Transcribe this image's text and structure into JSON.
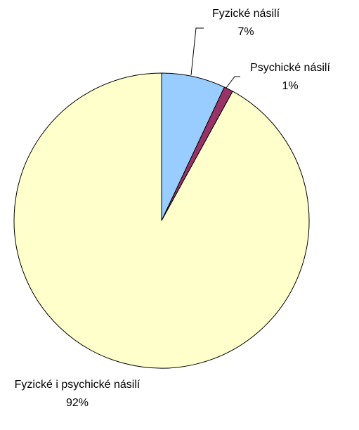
{
  "chart_data": {
    "type": "pie",
    "categories": [
      "Fyzické násilí",
      "Psychické násilí",
      "Fyzické i psychické násilí"
    ],
    "values": [
      7,
      1,
      92
    ],
    "value_labels": [
      "7%",
      "1%",
      "92%"
    ],
    "colors": [
      "#99ccff",
      "#993366",
      "#ffffcc"
    ]
  }
}
